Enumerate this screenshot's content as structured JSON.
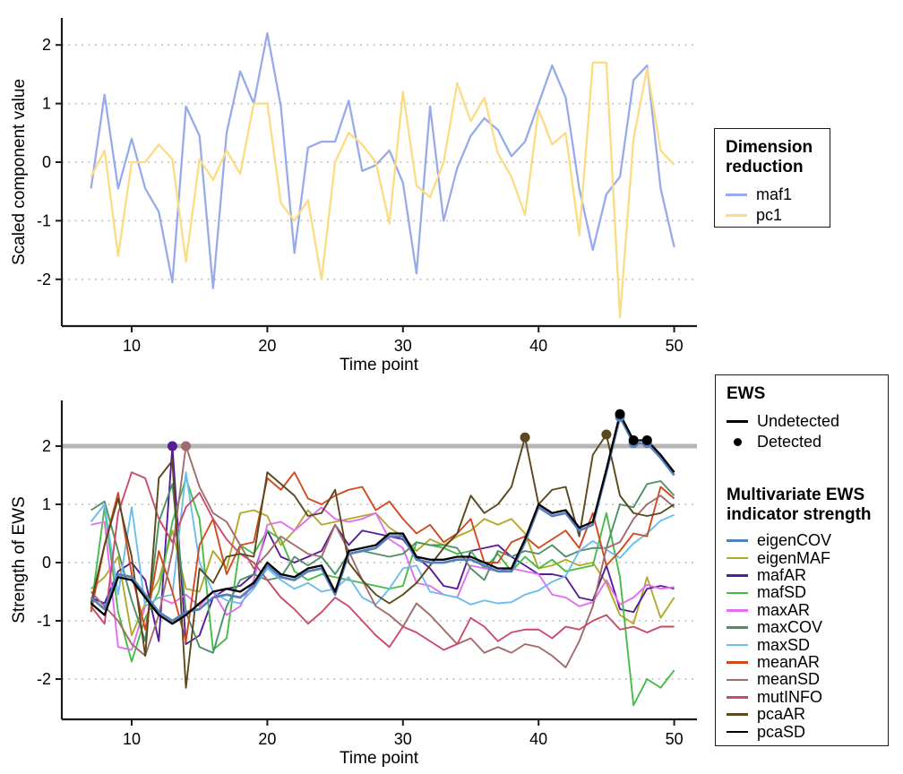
{
  "figure": {
    "background": "#ffffff",
    "axis_color": "#1a1a1a",
    "grid_color": "#bfbfbf",
    "threshold_color": "#b5b5b5"
  },
  "chart_data": [
    {
      "type": "line",
      "title": "",
      "xlabel": "Time point",
      "ylabel": "Scaled component value",
      "x_ticks": [
        10,
        20,
        30,
        40,
        50
      ],
      "y_ticks": [
        2,
        1,
        0,
        -1,
        -2
      ],
      "xlim": [
        5,
        52
      ],
      "ylim": [
        -2.8,
        2.5
      ],
      "grid": "dotted horizontal",
      "legend_title": "Dimension reduction",
      "legend_position": "right",
      "x": [
        7,
        8,
        9,
        10,
        11,
        12,
        13,
        14,
        15,
        16,
        17,
        18,
        19,
        20,
        21,
        22,
        23,
        24,
        25,
        26,
        27,
        28,
        29,
        30,
        31,
        32,
        33,
        34,
        35,
        36,
        37,
        38,
        39,
        40,
        41,
        42,
        43,
        44,
        45,
        46,
        47,
        48,
        49,
        50
      ],
      "series": [
        {
          "name": "maf1",
          "color": "#97abeb",
          "values": [
            -0.45,
            1.15,
            -0.45,
            0.4,
            -0.45,
            -0.85,
            -2.05,
            0.95,
            0.45,
            -2.15,
            0.5,
            1.55,
            1,
            2.2,
            0.95,
            -1.55,
            0.25,
            0.35,
            0.35,
            1.05,
            -0.15,
            -0.05,
            0.2,
            -0.35,
            -1.9,
            0.95,
            -1,
            -0.1,
            0.45,
            0.75,
            0.55,
            0.1,
            0.35,
            1,
            1.65,
            1.1,
            -0.45,
            -1.5,
            -0.55,
            -0.25,
            1.4,
            1.65,
            -0.45,
            -1.45
          ]
        },
        {
          "name": "pc1",
          "color": "#fbdc83",
          "values": [
            -0.25,
            0.2,
            -1.6,
            0,
            0,
            0.3,
            0.05,
            -1.7,
            0.05,
            -0.3,
            0.2,
            -0.2,
            1,
            1,
            -0.7,
            -1,
            -0.65,
            -2,
            0,
            0.5,
            0.3,
            0,
            -1.05,
            1.2,
            -0.4,
            -0.6,
            0,
            1.35,
            0.7,
            1.1,
            0.15,
            -0.25,
            -0.9,
            0.9,
            0.3,
            0.5,
            -1.25,
            1.7,
            1.7,
            -2.65,
            0.4,
            1.6,
            0.2,
            -0.05
          ]
        }
      ]
    },
    {
      "type": "line",
      "title": "",
      "xlabel": "Time point",
      "ylabel": "Strength of EWS",
      "x_ticks": [
        10,
        20,
        30,
        40,
        50
      ],
      "y_ticks": [
        2,
        1,
        0,
        -1,
        -2
      ],
      "xlim": [
        5,
        52
      ],
      "ylim": [
        -2.7,
        2.8
      ],
      "grid": "dotted horizontal",
      "threshold": 2,
      "ews_legend": {
        "title": "EWS",
        "items": [
          {
            "label": "Undetected",
            "marker": "line"
          },
          {
            "label": "Detected",
            "marker": "dot"
          }
        ]
      },
      "legend_title": "Multivariate EWS indicator strength",
      "legend_position": "right",
      "x": [
        7,
        8,
        9,
        10,
        11,
        12,
        13,
        14,
        15,
        16,
        17,
        18,
        19,
        20,
        21,
        22,
        23,
        24,
        25,
        26,
        27,
        28,
        29,
        30,
        31,
        32,
        33,
        34,
        35,
        36,
        37,
        38,
        39,
        40,
        41,
        42,
        43,
        44,
        45,
        46,
        47,
        48,
        49,
        50
      ],
      "series": [
        {
          "name": "eigenCOV",
          "color": "#5580c0",
          "values": [
            -0.6,
            -0.8,
            -0.2,
            -0.25,
            -0.55,
            -0.85,
            -1,
            -0.85,
            -0.8,
            -0.6,
            -0.55,
            -0.6,
            -0.4,
            -0.05,
            -0.25,
            -0.3,
            -0.15,
            -0.1,
            -0.55,
            0.15,
            0.2,
            0.25,
            0.45,
            0.45,
            0.05,
            0,
            0,
            0.05,
            0.05,
            -0.05,
            -0.15,
            -0.15,
            0.35,
            0.95,
            0.8,
            0.85,
            0.55,
            0.65,
            1.55,
            2.5,
            2.05,
            2.05,
            1.8,
            1.5
          ],
          "detected": [
            [
              46,
              2.5
            ],
            [
              47,
              2.05
            ],
            [
              48,
              2.05
            ]
          ]
        },
        {
          "name": "eigenMAF",
          "color": "#b3a829",
          "values": [
            -0.45,
            -0.25,
            0.1,
            -1.25,
            -0.7,
            -0.3,
            0.55,
            -0.45,
            -0.5,
            0.2,
            -0.1,
            0.85,
            0.9,
            0.8,
            0.3,
            0.55,
            0.9,
            0.65,
            0.7,
            0.75,
            0.8,
            0.85,
            0.6,
            0.45,
            0.2,
            0.4,
            0.3,
            0.45,
            0.55,
            0.75,
            0.65,
            0.75,
            0.5,
            -0.1,
            -0.05,
            0.05,
            -0.05,
            0,
            -0.35,
            -0.9,
            -1.05,
            -0.25,
            -0.95,
            -0.6
          ],
          "detected": []
        },
        {
          "name": "mafAR",
          "color": "#571c96",
          "values": [
            -0.6,
            -0.7,
            -0.15,
            0,
            -0.3,
            -1.35,
            2,
            -1.4,
            -1.25,
            -0.6,
            -0.45,
            -0.4,
            -0.2,
            0.55,
            0.1,
            0,
            0.1,
            0.2,
            0.65,
            0.3,
            0.55,
            0.5,
            0.45,
            0.4,
            0.1,
            -0.1,
            -0.4,
            -0.45,
            0.2,
            0.25,
            0.3,
            0.1,
            -0.05,
            -0.2,
            -0.2,
            -0.25,
            -0.6,
            -0.65,
            -0.05,
            -0.8,
            -0.85,
            -0.45,
            -0.4,
            -0.45
          ],
          "detected": [
            [
              13,
              2
            ]
          ]
        },
        {
          "name": "mafSD",
          "color": "#47bb47",
          "values": [
            -0.8,
            0.95,
            -0.85,
            -1.7,
            -0.95,
            -0.5,
            0.7,
            1.45,
            0.75,
            -1.5,
            -1.3,
            0.3,
            0.15,
            0.55,
            0.4,
            -0.15,
            -0.3,
            -0.2,
            -0.25,
            -0.3,
            -0.35,
            -0.4,
            -0.45,
            -0.4,
            0.35,
            0.3,
            0.25,
            0.15,
            0.2,
            -0.1,
            0.15,
            -0.15,
            0.1,
            -0.1,
            0.05,
            -0.15,
            -0.1,
            -0.05,
            0.85,
            -0.25,
            -2.45,
            -2,
            -2.15,
            -1.85
          ],
          "detected": []
        },
        {
          "name": "maxAR",
          "color": "#e26dee",
          "values": [
            0.65,
            0.7,
            -1.45,
            -1.5,
            -0.75,
            -0.6,
            -0.7,
            -0.55,
            -0.75,
            -0.5,
            -0.9,
            -0.75,
            -0.3,
            0.65,
            0.7,
            0.55,
            0.75,
            0.95,
            0.75,
            0.7,
            0.75,
            0.85,
            0.4,
            0.25,
            -0.35,
            -0.4,
            -0.55,
            -0.6,
            -0.05,
            -0.1,
            -0.15,
            -0.1,
            -0.15,
            -0.2,
            -0.55,
            -0.6,
            -0.75,
            -0.68,
            -0.3,
            -0.72,
            -0.6,
            -0.38,
            -0.45,
            -0.42
          ],
          "detected": []
        },
        {
          "name": "maxCOV",
          "color": "#4f8f68",
          "values": [
            0.9,
            1.05,
            0.2,
            -0.65,
            -1.35,
            0.7,
            1.35,
            -0.85,
            -1.45,
            -1.55,
            -0.75,
            -0.3,
            -0.2,
            -0.3,
            -0.25,
            0.1,
            -0.05,
            0.1,
            -0.2,
            0.15,
            0.2,
            0.15,
            0.1,
            0.15,
            0.35,
            0.3,
            0.3,
            0.25,
            -0.1,
            -0.3,
            0.2,
            0.1,
            0.2,
            0.15,
            0.3,
            0.1,
            0.2,
            0.25,
            0.25,
            1,
            0.95,
            1.35,
            1.4,
            1.15
          ],
          "detected": []
        },
        {
          "name": "maxSD",
          "color": "#6cbdee",
          "values": [
            0.7,
            1,
            -0.55,
            0.95,
            -0.75,
            -0.6,
            -0.55,
            1.55,
            0,
            -0.5,
            -0.65,
            -0.7,
            -0.45,
            -0.1,
            -0.3,
            -0.45,
            -0.35,
            -0.5,
            -0.45,
            -0.25,
            -0.6,
            -0.72,
            -0.45,
            -0.1,
            -0.05,
            -0.5,
            -0.55,
            -0.6,
            -0.72,
            -0.65,
            -0.7,
            -0.68,
            -0.55,
            -0.48,
            -0.33,
            -0.23,
            0.2,
            0.37,
            0.22,
            0.08,
            0.33,
            0.5,
            0.72,
            0.82
          ],
          "detected": []
        },
        {
          "name": "meanAR",
          "color": "#d14a1e",
          "values": [
            -0.85,
            0.3,
            1.2,
            -0.2,
            -1.15,
            0.2,
            -0.5,
            -1.35,
            0.3,
            0.75,
            -0.2,
            0.3,
            0.35,
            1.45,
            1.25,
            1.55,
            1.1,
            1,
            1.15,
            1.25,
            1.3,
            0.9,
            1.05,
            0.75,
            0.5,
            0.65,
            0.35,
            0.5,
            0.75,
            0,
            0,
            0.35,
            0.45,
            0.25,
            0.4,
            0.55,
            0.25,
            0.85,
            -0.05,
            0.2,
            0.5,
            0.45,
            1.3,
            1.1
          ],
          "detected": []
        },
        {
          "name": "meanSD",
          "color": "#a16a6b",
          "values": [
            -0.5,
            -0.75,
            -1,
            -1.4,
            -1.6,
            -0.9,
            0.2,
            2,
            1.3,
            0.85,
            0.7,
            0.3,
            -0.1,
            0.15,
            0.45,
            0.3,
            0.15,
            0.1,
            0.65,
            0.2,
            -0.3,
            -0.75,
            -0.9,
            -1.1,
            -0.7,
            -0.9,
            -1.15,
            -1.4,
            -1.3,
            -1.55,
            -1.45,
            -1.55,
            -1.4,
            -1.45,
            -1.6,
            -1.8,
            -1.35,
            -0.75,
            0.25,
            0.35,
            0.75,
            1,
            1.15,
            0.95
          ],
          "detected": [
            [
              14,
              2
            ]
          ]
        },
        {
          "name": "mutINFO",
          "color": "#c94a69",
          "values": [
            -0.75,
            -1.05,
            0.85,
            1.55,
            1.45,
            0.75,
            0.35,
            0.95,
            1.2,
            0.75,
            0.4,
            0.15,
            0,
            -0.3,
            -0.6,
            -0.8,
            -1.05,
            -0.85,
            -0.6,
            -0.75,
            -1,
            -1.25,
            -1.45,
            -1.1,
            -1.2,
            -1.35,
            -1.5,
            -1.4,
            -0.95,
            -1.1,
            -1.35,
            -1.2,
            -1.15,
            -1.15,
            -1.3,
            -1.1,
            -1.15,
            -1,
            -0.9,
            -1.15,
            -1.1,
            -1.2,
            -1.1,
            -1.1
          ],
          "detected": []
        },
        {
          "name": "pcaAR",
          "color": "#5a481e",
          "values": [
            -0.7,
            0.3,
            1.1,
            0.1,
            -1.6,
            1.45,
            1.75,
            -2.15,
            -0.1,
            -0.35,
            0.1,
            0.15,
            0.1,
            1.55,
            1.35,
            1.15,
            0.8,
            0.85,
            1.25,
            0,
            -0.3,
            -0.55,
            -0.7,
            -0.55,
            -0.35,
            -0.05,
            0.25,
            0.5,
            1.15,
            0.85,
            1,
            1.3,
            2.15,
            1,
            1.25,
            1.3,
            0.45,
            1.85,
            2.2,
            1.15,
            0.85,
            0.8,
            0.85,
            1
          ],
          "detected": [
            [
              39,
              2.15
            ],
            [
              45,
              2.2
            ]
          ]
        },
        {
          "name": "pcaSD",
          "color": "#000000",
          "values": [
            -0.7,
            -0.9,
            -0.25,
            -0.3,
            -0.6,
            -0.9,
            -1.05,
            -0.9,
            -0.7,
            -0.5,
            -0.45,
            -0.5,
            -0.35,
            0,
            -0.2,
            -0.25,
            -0.1,
            -0.05,
            -0.5,
            0.2,
            0.25,
            0.3,
            0.5,
            0.5,
            0.1,
            0.05,
            0.05,
            0.1,
            0.1,
            0,
            -0.1,
            -0.1,
            0.4,
            1,
            0.85,
            0.9,
            0.6,
            0.7,
            1.6,
            2.55,
            2.1,
            2.1,
            1.85,
            1.55
          ],
          "detected": [
            [
              46,
              2.55
            ],
            [
              47,
              2.1
            ],
            [
              48,
              2.1
            ]
          ]
        }
      ]
    }
  ]
}
